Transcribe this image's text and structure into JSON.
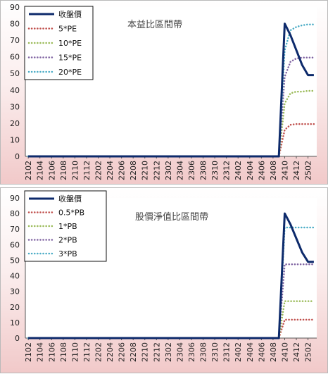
{
  "chart_data": [
    {
      "type": "line",
      "title": "本益比區間帶",
      "ylim": [
        0,
        90
      ],
      "yticks": [
        "0",
        "10",
        "20",
        "30",
        "40",
        "50",
        "60",
        "70",
        "80",
        "90"
      ],
      "x": [
        "2102",
        "2103",
        "2104",
        "2105",
        "2106",
        "2107",
        "2108",
        "2109",
        "2110",
        "2111",
        "2112",
        "2201",
        "2202",
        "2203",
        "2204",
        "2205",
        "2206",
        "2207",
        "2208",
        "2209",
        "2210",
        "2211",
        "2212",
        "2301",
        "2302",
        "2303",
        "2304",
        "2305",
        "2306",
        "2307",
        "2308",
        "2309",
        "2310",
        "2311",
        "2312",
        "2401",
        "2402",
        "2403",
        "2404",
        "2405",
        "2406",
        "2407",
        "2408",
        "2409",
        "2410",
        "2411",
        "2412",
        "2501",
        "2502",
        "2503"
      ],
      "xticks": [
        "2102",
        "2104",
        "2106",
        "2108",
        "2110",
        "2112",
        "2202",
        "2204",
        "2206",
        "2208",
        "2210",
        "2212",
        "2302",
        "2304",
        "2306",
        "2308",
        "2310",
        "2312",
        "2402",
        "2404",
        "2406",
        "2408",
        "2410",
        "2412",
        "2502"
      ],
      "series": [
        {
          "name": "收盤價",
          "color": "#0d2a6b",
          "style": "solid",
          "values": [
            0,
            0,
            0,
            0,
            0,
            0,
            0,
            0,
            0,
            0,
            0,
            0,
            0,
            0,
            0,
            0,
            0,
            0,
            0,
            0,
            0,
            0,
            0,
            0,
            0,
            0,
            0,
            0,
            0,
            0,
            0,
            0,
            0,
            0,
            0,
            0,
            0,
            0,
            0,
            0,
            0,
            0,
            0,
            0,
            80,
            73,
            64,
            55,
            49,
            49
          ]
        },
        {
          "name": "5*PE",
          "color": "#c0504d",
          "style": "dotted",
          "values": [
            0,
            0,
            0,
            0,
            0,
            0,
            0,
            0,
            0,
            0,
            0,
            0,
            0,
            0,
            0,
            0,
            0,
            0,
            0,
            0,
            0,
            0,
            0,
            0,
            0,
            0,
            0,
            0,
            0,
            0,
            0,
            0,
            0,
            0,
            0,
            0,
            0,
            0,
            0,
            0,
            0,
            0,
            0,
            0,
            16,
            19,
            19.5,
            19.5,
            19.5,
            19.5
          ]
        },
        {
          "name": "10*PE",
          "color": "#9bbb59",
          "style": "dotted",
          "values": [
            0,
            0,
            0,
            0,
            0,
            0,
            0,
            0,
            0,
            0,
            0,
            0,
            0,
            0,
            0,
            0,
            0,
            0,
            0,
            0,
            0,
            0,
            0,
            0,
            0,
            0,
            0,
            0,
            0,
            0,
            0,
            0,
            0,
            0,
            0,
            0,
            0,
            0,
            0,
            0,
            0,
            0,
            0,
            0,
            32,
            38,
            39,
            39,
            39.5,
            39.5
          ]
        },
        {
          "name": "15*PE",
          "color": "#8064a2",
          "style": "dotted",
          "values": [
            0,
            0,
            0,
            0,
            0,
            0,
            0,
            0,
            0,
            0,
            0,
            0,
            0,
            0,
            0,
            0,
            0,
            0,
            0,
            0,
            0,
            0,
            0,
            0,
            0,
            0,
            0,
            0,
            0,
            0,
            0,
            0,
            0,
            0,
            0,
            0,
            0,
            0,
            0,
            0,
            0,
            0,
            0,
            0,
            48,
            57,
            59,
            59.5,
            59.5,
            59.5
          ]
        },
        {
          "name": "20*PE",
          "color": "#4bacc6",
          "style": "dotted",
          "values": [
            0,
            0,
            0,
            0,
            0,
            0,
            0,
            0,
            0,
            0,
            0,
            0,
            0,
            0,
            0,
            0,
            0,
            0,
            0,
            0,
            0,
            0,
            0,
            0,
            0,
            0,
            0,
            0,
            0,
            0,
            0,
            0,
            0,
            0,
            0,
            0,
            0,
            0,
            0,
            0,
            0,
            0,
            0,
            0,
            64,
            76,
            78,
            79,
            79.5,
            79.5
          ]
        }
      ],
      "legend": "top-left",
      "grid": false
    },
    {
      "type": "line",
      "title": "股價淨值比區間帶",
      "ylim": [
        0,
        90
      ],
      "yticks": [
        "0",
        "10",
        "20",
        "30",
        "40",
        "50",
        "60",
        "70",
        "80",
        "90"
      ],
      "x": [
        "2102",
        "2103",
        "2104",
        "2105",
        "2106",
        "2107",
        "2108",
        "2109",
        "2110",
        "2111",
        "2112",
        "2201",
        "2202",
        "2203",
        "2204",
        "2205",
        "2206",
        "2207",
        "2208",
        "2209",
        "2210",
        "2211",
        "2212",
        "2301",
        "2302",
        "2303",
        "2304",
        "2305",
        "2306",
        "2307",
        "2308",
        "2309",
        "2310",
        "2311",
        "2312",
        "2401",
        "2402",
        "2403",
        "2404",
        "2405",
        "2406",
        "2407",
        "2408",
        "2409",
        "2410",
        "2411",
        "2412",
        "2501",
        "2502",
        "2503"
      ],
      "xticks": [
        "2102",
        "2104",
        "2106",
        "2108",
        "2110",
        "2112",
        "2202",
        "2204",
        "2206",
        "2208",
        "2210",
        "2212",
        "2302",
        "2304",
        "2306",
        "2308",
        "2310",
        "2312",
        "2402",
        "2404",
        "2406",
        "2408",
        "2410",
        "2412",
        "2502"
      ],
      "series": [
        {
          "name": "收盤價",
          "color": "#0d2a6b",
          "style": "solid",
          "values": [
            0,
            0,
            0,
            0,
            0,
            0,
            0,
            0,
            0,
            0,
            0,
            0,
            0,
            0,
            0,
            0,
            0,
            0,
            0,
            0,
            0,
            0,
            0,
            0,
            0,
            0,
            0,
            0,
            0,
            0,
            0,
            0,
            0,
            0,
            0,
            0,
            0,
            0,
            0,
            0,
            0,
            0,
            0,
            0,
            80,
            73,
            64,
            55,
            49,
            49
          ]
        },
        {
          "name": "0.5*PB",
          "color": "#c0504d",
          "style": "dotted",
          "values": [
            0,
            0,
            0,
            0,
            0,
            0,
            0,
            0,
            0,
            0,
            0,
            0,
            0,
            0,
            0,
            0,
            0,
            0,
            0,
            0,
            0,
            0,
            0,
            0,
            0,
            0,
            0,
            0,
            0,
            0,
            0,
            0,
            0,
            0,
            0,
            0,
            0,
            0,
            0,
            0,
            0,
            0,
            0,
            0,
            11.8,
            11.8,
            11.8,
            11.8,
            11.8,
            11.8
          ]
        },
        {
          "name": "1*PB",
          "color": "#9bbb59",
          "style": "dotted",
          "values": [
            0,
            0,
            0,
            0,
            0,
            0,
            0,
            0,
            0,
            0,
            0,
            0,
            0,
            0,
            0,
            0,
            0,
            0,
            0,
            0,
            0,
            0,
            0,
            0,
            0,
            0,
            0,
            0,
            0,
            0,
            0,
            0,
            0,
            0,
            0,
            0,
            0,
            0,
            0,
            0,
            0,
            0,
            0,
            0,
            23.7,
            23.7,
            23.7,
            23.7,
            23.7,
            23.7
          ]
        },
        {
          "name": "2*PB",
          "color": "#8064a2",
          "style": "dotted",
          "values": [
            0,
            0,
            0,
            0,
            0,
            0,
            0,
            0,
            0,
            0,
            0,
            0,
            0,
            0,
            0,
            0,
            0,
            0,
            0,
            0,
            0,
            0,
            0,
            0,
            0,
            0,
            0,
            0,
            0,
            0,
            0,
            0,
            0,
            0,
            0,
            0,
            0,
            0,
            0,
            0,
            0,
            0,
            0,
            0,
            47.4,
            47.4,
            47.4,
            47.4,
            47.4,
            47.4
          ]
        },
        {
          "name": "3*PB",
          "color": "#4bacc6",
          "style": "dotted",
          "values": [
            0,
            0,
            0,
            0,
            0,
            0,
            0,
            0,
            0,
            0,
            0,
            0,
            0,
            0,
            0,
            0,
            0,
            0,
            0,
            0,
            0,
            0,
            0,
            0,
            0,
            0,
            0,
            0,
            0,
            0,
            0,
            0,
            0,
            0,
            0,
            0,
            0,
            0,
            0,
            0,
            0,
            0,
            0,
            0,
            71,
            71,
            71,
            71,
            71,
            71
          ]
        }
      ],
      "legend": "top-left",
      "grid": false
    }
  ]
}
